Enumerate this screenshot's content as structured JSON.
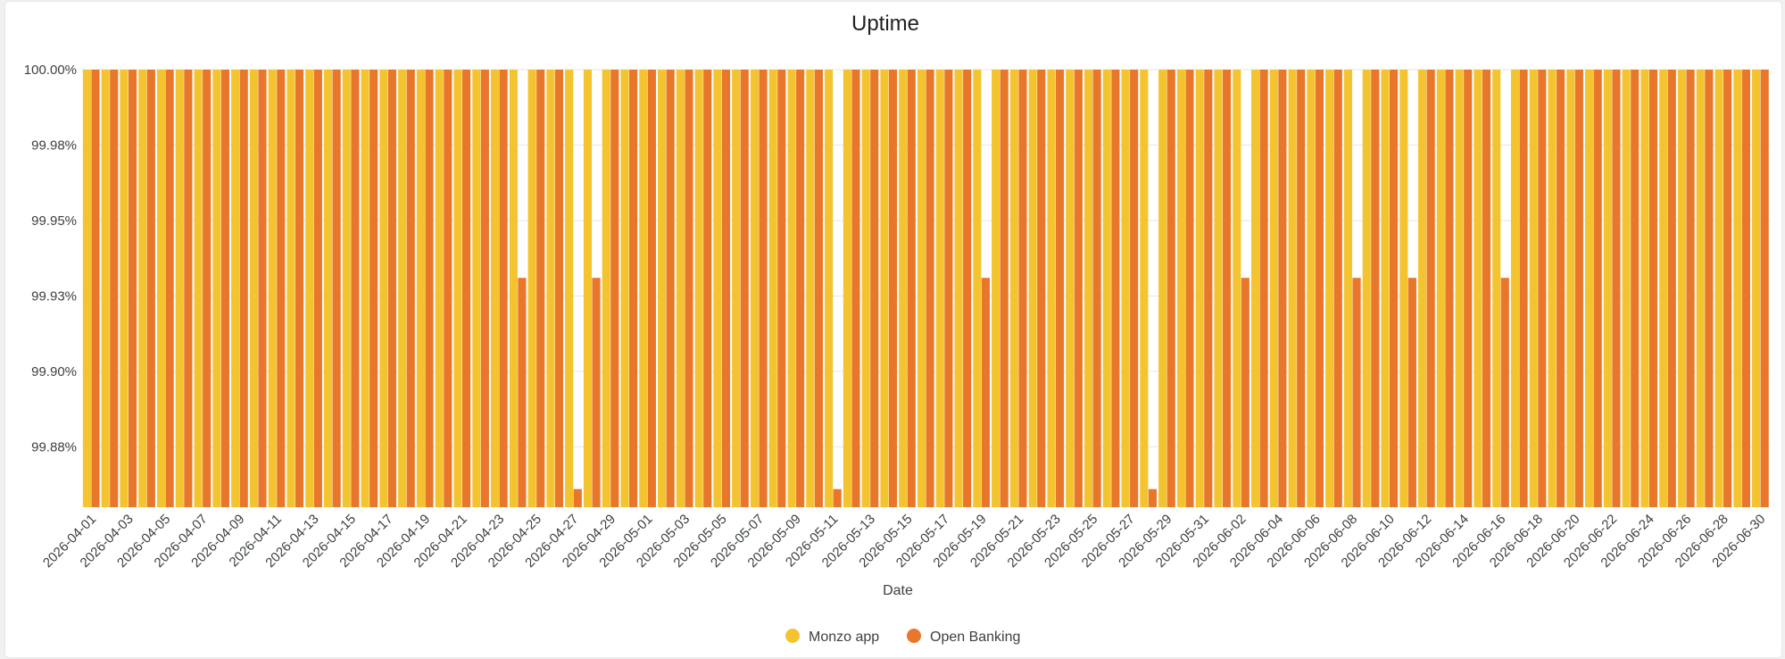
{
  "chart_data": {
    "type": "bar",
    "title": "Uptime",
    "xlabel": "Date",
    "ylabel": "",
    "ylim": [
      99.855,
      100.0
    ],
    "y_ticks": [
      {
        "value": 100.0,
        "label": "100.00%"
      },
      {
        "value": 99.975,
        "label": "99.98%"
      },
      {
        "value": 99.95,
        "label": "99.95%"
      },
      {
        "value": 99.925,
        "label": "99.93%"
      },
      {
        "value": 99.9,
        "label": "99.90%"
      },
      {
        "value": 99.875,
        "label": "99.88%"
      }
    ],
    "grid": true,
    "legend_position": "bottom",
    "categories": [
      "2026-04-01",
      "2026-04-02",
      "2026-04-03",
      "2026-04-04",
      "2026-04-05",
      "2026-04-06",
      "2026-04-07",
      "2026-04-08",
      "2026-04-09",
      "2026-04-10",
      "2026-04-11",
      "2026-04-12",
      "2026-04-13",
      "2026-04-14",
      "2026-04-15",
      "2026-04-16",
      "2026-04-17",
      "2026-04-18",
      "2026-04-19",
      "2026-04-20",
      "2026-04-21",
      "2026-04-22",
      "2026-04-23",
      "2026-04-24",
      "2026-04-25",
      "2026-04-26",
      "2026-04-27",
      "2026-04-28",
      "2026-04-29",
      "2026-04-30",
      "2026-05-01",
      "2026-05-02",
      "2026-05-03",
      "2026-05-04",
      "2026-05-05",
      "2026-05-06",
      "2026-05-07",
      "2026-05-08",
      "2026-05-09",
      "2026-05-10",
      "2026-05-11",
      "2026-05-12",
      "2026-05-13",
      "2026-05-14",
      "2026-05-15",
      "2026-05-16",
      "2026-05-17",
      "2026-05-18",
      "2026-05-19",
      "2026-05-20",
      "2026-05-21",
      "2026-05-22",
      "2026-05-23",
      "2026-05-24",
      "2026-05-25",
      "2026-05-26",
      "2026-05-27",
      "2026-05-28",
      "2026-05-29",
      "2026-05-30",
      "2026-05-31",
      "2026-06-01",
      "2026-06-02",
      "2026-06-03",
      "2026-06-04",
      "2026-06-05",
      "2026-06-06",
      "2026-06-07",
      "2026-06-08",
      "2026-06-09",
      "2026-06-10",
      "2026-06-11",
      "2026-06-12",
      "2026-06-13",
      "2026-06-14",
      "2026-06-15",
      "2026-06-16",
      "2026-06-17",
      "2026-06-18",
      "2026-06-19",
      "2026-06-20",
      "2026-06-21",
      "2026-06-22",
      "2026-06-23",
      "2026-06-24",
      "2026-06-25",
      "2026-06-26",
      "2026-06-27",
      "2026-06-28",
      "2026-06-29",
      "2026-06-30"
    ],
    "x_tick_labels": [
      "2026-04-01",
      "2026-04-03",
      "2026-04-05",
      "2026-04-07",
      "2026-04-09",
      "2026-04-11",
      "2026-04-13",
      "2026-04-15",
      "2026-04-17",
      "2026-04-19",
      "2026-04-21",
      "2026-04-23",
      "2026-04-25",
      "2026-04-27",
      "2026-04-29",
      "2026-05-01",
      "2026-05-03",
      "2026-05-05",
      "2026-05-07",
      "2026-05-09",
      "2026-05-11",
      "2026-05-13",
      "2026-05-15",
      "2026-05-17",
      "2026-05-19",
      "2026-05-21",
      "2026-05-23",
      "2026-05-25",
      "2026-05-27",
      "2026-05-29",
      "2026-05-31",
      "2026-06-02",
      "2026-06-04",
      "2026-06-06",
      "2026-06-08",
      "2026-06-10",
      "2026-06-12",
      "2026-06-14",
      "2026-06-16",
      "2026-06-18",
      "2026-06-20",
      "2026-06-22",
      "2026-06-24",
      "2026-06-26",
      "2026-06-28",
      "2026-06-30"
    ],
    "series": [
      {
        "name": "Monzo app",
        "color": "#F4C430",
        "values": [
          100,
          100,
          100,
          100,
          100,
          100,
          100,
          100,
          100,
          100,
          100,
          100,
          100,
          100,
          100,
          100,
          100,
          100,
          100,
          100,
          100,
          100,
          100,
          100,
          100,
          100,
          100,
          100,
          100,
          100,
          100,
          100,
          100,
          100,
          100,
          100,
          100,
          100,
          100,
          100,
          100,
          100,
          100,
          100,
          100,
          100,
          100,
          100,
          100,
          100,
          100,
          100,
          100,
          100,
          100,
          100,
          100,
          100,
          100,
          100,
          100,
          100,
          100,
          100,
          100,
          100,
          100,
          100,
          100,
          100,
          100,
          100,
          100,
          100,
          100,
          100,
          100,
          100,
          100,
          100,
          100,
          100,
          100,
          100,
          100,
          100,
          100,
          100,
          100,
          100,
          100
        ]
      },
      {
        "name": "Open Banking",
        "color": "#E8762B",
        "values": [
          100,
          100,
          100,
          100,
          100,
          100,
          100,
          100,
          100,
          100,
          100,
          100,
          100,
          100,
          100,
          100,
          100,
          100,
          100,
          100,
          100,
          100,
          100,
          99.931,
          100,
          100,
          99.861,
          99.931,
          100,
          100,
          100,
          100,
          100,
          100,
          100,
          100,
          100,
          100,
          100,
          100,
          99.861,
          100,
          100,
          100,
          100,
          100,
          100,
          100,
          99.931,
          100,
          100,
          100,
          100,
          100,
          100,
          100,
          100,
          99.861,
          100,
          100,
          100,
          100,
          99.931,
          100,
          100,
          100,
          100,
          100,
          99.931,
          100,
          100,
          99.931,
          100,
          100,
          100,
          100,
          99.931,
          100,
          100,
          100,
          100,
          100,
          100,
          100,
          100,
          100,
          100,
          100,
          100,
          100,
          100
        ]
      }
    ]
  }
}
